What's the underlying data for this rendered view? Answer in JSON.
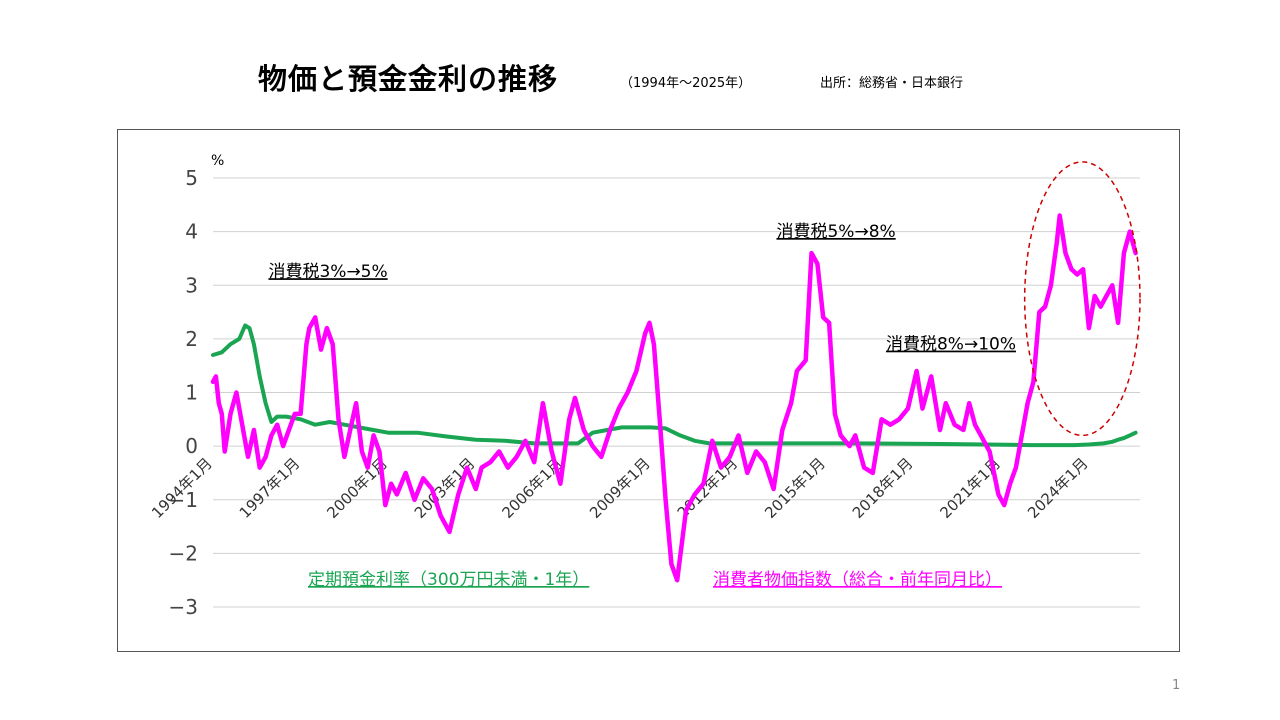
{
  "slide": {
    "title": "物価と預金金利の推移",
    "period": "（1994年～2025年）",
    "source": "出所：総務省・日本銀行",
    "page_number": "1"
  },
  "chart_data": {
    "type": "line",
    "ylabel": "%",
    "ylim": [
      -3,
      5
    ],
    "yticks": [
      5,
      4,
      3,
      2,
      1,
      0,
      -1,
      -2,
      -3
    ],
    "ytick_labels": [
      "5",
      "4",
      "3",
      "2",
      "1",
      "0",
      "−1",
      "−2",
      "−3"
    ],
    "xlim": [
      1994.0,
      2025.75
    ],
    "xticks": [
      1994,
      1997,
      2000,
      2003,
      2006,
      2009,
      2012,
      2015,
      2018,
      2021,
      2024
    ],
    "xtick_labels": [
      "1994年1月",
      "1997年1月",
      "2000年1月",
      "2003年1月",
      "2006年1月",
      "2009年1月",
      "2012年1月",
      "2015年1月",
      "2018年1月",
      "2021年1月",
      "2024年1月"
    ],
    "grid": true,
    "series": [
      {
        "name": "定期預金利率（300万円未満・1年）",
        "color": "#1aa552",
        "x": [
          1994.0,
          1994.3,
          1994.6,
          1994.9,
          1995.1,
          1995.25,
          1995.4,
          1995.6,
          1995.8,
          1996.0,
          1996.2,
          1996.5,
          1997.0,
          1997.5,
          1998.0,
          1998.5,
          1999.0,
          2000.0,
          2001.0,
          2002.0,
          2003.0,
          2004.0,
          2005.0,
          2006.0,
          2006.5,
          2007.0,
          2007.5,
          2008.0,
          2008.5,
          2009.0,
          2009.5,
          2010.0,
          2010.5,
          2011.0,
          2013.0,
          2016.0,
          2019.0,
          2022.0,
          2023.5,
          2024.0,
          2024.5,
          2024.8,
          2025.0,
          2025.2,
          2025.4,
          2025.6
        ],
        "values": [
          1.7,
          1.75,
          1.9,
          2.0,
          2.25,
          2.2,
          1.9,
          1.3,
          0.8,
          0.45,
          0.55,
          0.55,
          0.5,
          0.4,
          0.45,
          0.4,
          0.35,
          0.25,
          0.25,
          0.18,
          0.12,
          0.1,
          0.05,
          0.05,
          0.05,
          0.25,
          0.3,
          0.35,
          0.35,
          0.35,
          0.33,
          0.2,
          0.1,
          0.05,
          0.05,
          0.05,
          0.04,
          0.02,
          0.02,
          0.03,
          0.05,
          0.08,
          0.12,
          0.15,
          0.2,
          0.25
        ]
      },
      {
        "name": "消費者物価指数（総合・前年同月比）",
        "color": "#ff00ff",
        "x": [
          1994.0,
          1994.1,
          1994.2,
          1994.3,
          1994.4,
          1994.6,
          1994.8,
          1995.0,
          1995.2,
          1995.4,
          1995.6,
          1995.8,
          1996.0,
          1996.2,
          1996.4,
          1996.6,
          1996.8,
          1997.0,
          1997.2,
          1997.3,
          1997.5,
          1997.7,
          1997.9,
          1998.1,
          1998.3,
          1998.5,
          1998.7,
          1998.9,
          1999.1,
          1999.3,
          1999.5,
          1999.7,
          1999.9,
          2000.1,
          2000.3,
          2000.6,
          2000.9,
          2001.2,
          2001.5,
          2001.8,
          2002.1,
          2002.4,
          2002.7,
          2003.0,
          2003.2,
          2003.5,
          2003.8,
          2004.1,
          2004.4,
          2004.7,
          2005.0,
          2005.3,
          2005.6,
          2005.9,
          2006.2,
          2006.4,
          2006.7,
          2007.0,
          2007.3,
          2007.6,
          2007.9,
          2008.2,
          2008.5,
          2008.8,
          2008.95,
          2009.1,
          2009.3,
          2009.5,
          2009.7,
          2009.9,
          2010.2,
          2010.5,
          2010.8,
          2011.1,
          2011.4,
          2011.7,
          2012.0,
          2012.3,
          2012.6,
          2012.9,
          2013.2,
          2013.5,
          2013.8,
          2014.0,
          2014.3,
          2014.5,
          2014.7,
          2014.9,
          2015.1,
          2015.3,
          2015.5,
          2015.8,
          2016.0,
          2016.3,
          2016.6,
          2016.9,
          2017.2,
          2017.5,
          2017.8,
          2018.1,
          2018.3,
          2018.6,
          2018.9,
          2019.1,
          2019.4,
          2019.7,
          2019.9,
          2020.1,
          2020.3,
          2020.6,
          2020.9,
          2021.1,
          2021.3,
          2021.5,
          2021.7,
          2021.9,
          2022.1,
          2022.3,
          2022.5,
          2022.7,
          2022.9,
          2023.0,
          2023.2,
          2023.4,
          2023.6,
          2023.8,
          2024.0,
          2024.2,
          2024.4,
          2024.6,
          2024.8,
          2025.0,
          2025.2,
          2025.4,
          2025.6
        ],
        "values": [
          1.2,
          1.3,
          0.8,
          0.6,
          -0.1,
          0.6,
          1.0,
          0.4,
          -0.2,
          0.3,
          -0.4,
          -0.2,
          0.2,
          0.4,
          0.0,
          0.3,
          0.6,
          0.6,
          1.9,
          2.2,
          2.4,
          1.8,
          2.2,
          1.9,
          0.5,
          -0.2,
          0.3,
          0.8,
          -0.1,
          -0.4,
          0.2,
          -0.1,
          -1.1,
          -0.7,
          -0.9,
          -0.5,
          -1.0,
          -0.6,
          -0.8,
          -1.3,
          -1.6,
          -0.9,
          -0.4,
          -0.8,
          -0.4,
          -0.3,
          -0.1,
          -0.4,
          -0.2,
          0.1,
          -0.3,
          0.8,
          -0.1,
          -0.7,
          0.5,
          0.9,
          0.3,
          0.0,
          -0.2,
          0.3,
          0.7,
          1.0,
          1.4,
          2.1,
          2.3,
          1.9,
          0.5,
          -1.0,
          -2.2,
          -2.5,
          -1.2,
          -0.9,
          -0.7,
          0.1,
          -0.4,
          -0.2,
          0.2,
          -0.5,
          -0.1,
          -0.3,
          -0.8,
          0.3,
          0.8,
          1.4,
          1.6,
          3.6,
          3.4,
          2.4,
          2.3,
          0.6,
          0.2,
          0.0,
          0.2,
          -0.4,
          -0.5,
          0.5,
          0.4,
          0.5,
          0.7,
          1.4,
          0.7,
          1.3,
          0.3,
          0.8,
          0.4,
          0.3,
          0.8,
          0.4,
          0.2,
          -0.1,
          -0.9,
          -1.1,
          -0.7,
          -0.4,
          0.2,
          0.8,
          1.2,
          2.5,
          2.6,
          3.0,
          3.8,
          4.3,
          3.6,
          3.3,
          3.2,
          3.3,
          2.2,
          2.8,
          2.6,
          2.8,
          3.0,
          2.3,
          3.6,
          4.0,
          3.6
        ]
      }
    ],
    "annotations": [
      {
        "text": "消費税3%→5%",
        "x": 1995.9,
        "y": 3.15
      },
      {
        "text": "消費税5%→8%",
        "x": 2013.3,
        "y": 3.9
      },
      {
        "text": "消費税8%→10%",
        "x": 2017.05,
        "y": 1.8
      }
    ],
    "highlight_region": {
      "shape": "ellipse",
      "color": "#cc0000",
      "style": "dashed",
      "x_range": [
        2021.8,
        2025.75
      ],
      "y_range": [
        0.2,
        5.3
      ]
    }
  }
}
